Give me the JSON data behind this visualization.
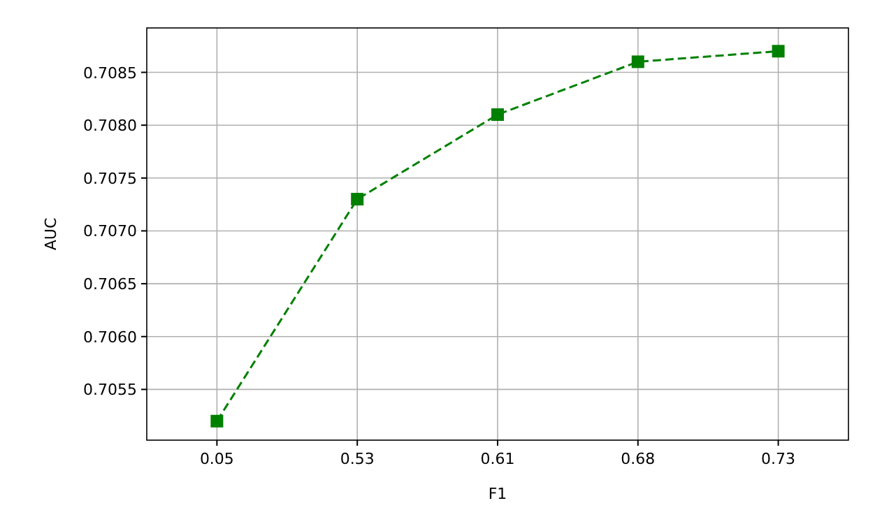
{
  "chart_data": {
    "type": "line",
    "xlabel": "F1",
    "ylabel": "AUC",
    "categories": [
      "0.05",
      "0.53",
      "0.61",
      "0.68",
      "0.73"
    ],
    "series": [
      {
        "color": "#008000",
        "values": [
          0.7052,
          0.7073,
          0.7081,
          0.7086,
          0.7087
        ]
      }
    ],
    "ylim": [
      0.70502,
      0.70892
    ],
    "yticks": [
      0.7055,
      {
        "value": 0.706,
        "label": "0.7060"
      },
      0.7065,
      {
        "value": 0.707,
        "label": "0.7070"
      },
      0.7075,
      {
        "value": 0.708,
        "label": "0.7080"
      },
      0.7085
    ],
    "grid": true,
    "marker": "square",
    "line_style": "dashed"
  }
}
